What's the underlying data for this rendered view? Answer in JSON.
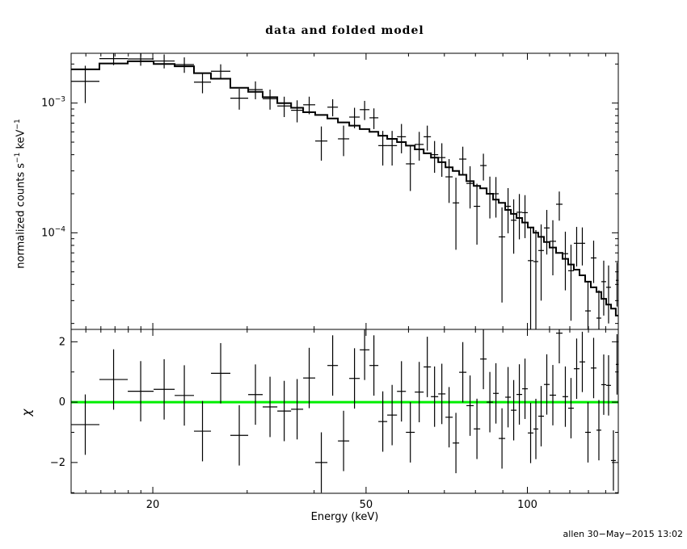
{
  "title": "data and folded model",
  "footer": {
    "stamp": "allen 30−May−2015 13:02"
  },
  "axes": {
    "x_label": "Energy (keV)",
    "x_ticks": [
      {
        "label": "20",
        "value": 20
      },
      {
        "label": "50",
        "value": 50
      },
      {
        "label": "100",
        "value": 100
      }
    ],
    "x_minor": [
      15,
      16,
      17,
      18,
      19,
      30,
      40,
      60,
      70,
      80,
      90,
      110,
      120,
      130,
      140
    ],
    "top_y_label": {
      "pre": "normalized counts s",
      "sup1": "−1",
      "mid": " keV",
      "sup2": "−1"
    },
    "top_y_ticks": [
      {
        "base": "10",
        "exp": "−3",
        "value": 0.001
      },
      {
        "base": "10",
        "exp": "−4",
        "value": 0.0001
      }
    ],
    "bottom_y_label": "χ",
    "bottom_y_ticks": [
      {
        "label": "2",
        "value": 2
      },
      {
        "label": "0",
        "value": 0
      },
      {
        "label": "−2",
        "value": -2
      }
    ],
    "bottom_y_minor": [
      1,
      -1,
      -3
    ]
  },
  "chart_data": {
    "type": "line",
    "title": "data and folded model",
    "xlabel": "Energy (keV)",
    "ylabel": "normalized counts s^-1 keV^-1",
    "ylabel_residual": "chi",
    "x_scale": "log",
    "y_scale": "log",
    "xlim": [
      14.08,
      147.8
    ],
    "ylim_top": [
      1.8e-05,
      0.00242
    ],
    "ylim_residual": [
      -3.02,
      2.41
    ],
    "grid": false,
    "legend": "none",
    "residual_zero_line_color": "#00ee00",
    "residual_err": 1,
    "series": [
      {
        "name": "data",
        "style": "crosses-with-errors",
        "color": "#000000"
      },
      {
        "name": "folded model",
        "style": "step-histogram",
        "color": "#000000"
      }
    ],
    "bin_fields": [
      "e_lo_keV",
      "e_hi_keV",
      "rate",
      "rate_err",
      "model"
    ],
    "bins": [
      [
        14.08,
        15.9,
        0.00147,
        0.00047,
        0.00182
      ],
      [
        15.9,
        17.96,
        0.0022,
        0.00024,
        0.00202
      ],
      [
        17.96,
        20.07,
        0.00219,
        0.00025,
        0.0021
      ],
      [
        20.07,
        21.97,
        0.00211,
        0.00026,
        0.002
      ],
      [
        21.97,
        23.87,
        0.00198,
        0.00027,
        0.00192
      ],
      [
        23.87,
        25.68,
        0.00145,
        0.00026,
        0.0017
      ],
      [
        25.68,
        27.91,
        0.00176,
        0.00023,
        0.00154
      ],
      [
        27.91,
        30.13,
        0.00109,
        0.0002,
        0.00131
      ],
      [
        30.13,
        32.07,
        0.00127,
        0.0002,
        0.00122
      ],
      [
        32.07,
        34.15,
        0.00108,
        0.00019,
        0.00111
      ],
      [
        34.15,
        36.23,
        0.00095,
        0.00017,
        0.001
      ],
      [
        36.23,
        38.16,
        0.00088,
        0.00017,
        0.00092
      ],
      [
        38.16,
        40.19,
        0.00097,
        0.00015,
        0.00085
      ],
      [
        40.19,
        42.35,
        0.00051,
        0.00015,
        0.00081
      ],
      [
        42.35,
        44.31,
        0.00093,
        0.00014,
        0.00076
      ],
      [
        44.31,
        46.51,
        0.00053,
        0.00014,
        0.00071
      ],
      [
        46.51,
        48.67,
        0.00078,
        0.00014,
        0.00067
      ],
      [
        48.67,
        50.74,
        0.00089,
        0.00015,
        0.00063
      ],
      [
        50.74,
        52.71,
        0.00077,
        0.00014,
        0.0006
      ],
      [
        52.71,
        54.76,
        0.00047,
        0.00014,
        0.00056
      ],
      [
        54.76,
        57.11,
        0.00047,
        0.00014,
        0.00053
      ],
      [
        57.11,
        59.34,
        0.00055,
        0.00014,
        0.0005
      ],
      [
        59.34,
        61.64,
        0.00034,
        0.00013,
        0.00047
      ],
      [
        61.64,
        64.04,
        0.00048,
        0.00012,
        0.00044
      ],
      [
        64.04,
        66.07,
        0.00055,
        0.00012,
        0.00041
      ],
      [
        66.07,
        68.17,
        0.0004,
        0.00011,
        0.00038
      ],
      [
        68.17,
        70.33,
        0.00038,
        0.00011,
        0.00035
      ],
      [
        70.33,
        72.55,
        0.00027,
        0.0001,
        0.00032
      ],
      [
        72.55,
        74.59,
        0.00017,
        9.6e-05,
        0.0003
      ],
      [
        74.59,
        76.96,
        0.00037,
        9.1e-05,
        0.00028
      ],
      [
        76.96,
        79.4,
        0.00024,
        8.6e-05,
        0.00025
      ],
      [
        79.4,
        81.65,
        0.00016,
        7.9e-05,
        0.00023
      ],
      [
        81.65,
        83.94,
        0.00033,
        7.7e-05,
        0.00022
      ],
      [
        83.94,
        86.3,
        0.0002,
        7.1e-05,
        0.0002
      ],
      [
        86.3,
        88.43,
        0.0002,
        6.9e-05,
        0.00018
      ],
      [
        88.43,
        90.92,
        9.3e-05,
        6.4e-05,
        0.00017
      ],
      [
        90.92,
        93.16,
        0.00016,
        6.1e-05,
        0.00015
      ],
      [
        93.16,
        95.44,
        0.000125,
        5.6e-05,
        0.00014
      ],
      [
        95.44,
        97.79,
        0.000144,
        5.5e-05,
        0.00013
      ],
      [
        97.79,
        100.19,
        0.000143,
        5.2e-05,
        0.00012
      ],
      [
        100.19,
        102.64,
        6.1e-05,
        4.8e-05,
        0.00011
      ],
      [
        102.64,
        104.81,
        6e-05,
        4.5e-05,
        0.0001
      ],
      [
        104.81,
        107.39,
        7.3e-05,
        4.3e-05,
        9.3e-05
      ],
      [
        107.39,
        110.03,
        0.000109,
        4.1e-05,
        8.5e-05
      ],
      [
        110.03,
        113.12,
        8.6e-05,
        3.9e-05,
        7.7e-05
      ],
      [
        113.12,
        116.3,
        0.000166,
        4.2e-05,
        7e-05
      ],
      [
        116.3,
        119.16,
        6.9e-05,
        3.3e-05,
        6.3e-05
      ],
      [
        119.16,
        122.09,
        5.1e-05,
        3e-05,
        5.7e-05
      ],
      [
        122.09,
        125.1,
        8.3e-05,
        2.8e-05,
        5.2e-05
      ],
      [
        125.1,
        128.18,
        8.3e-05,
        2.7e-05,
        4.7e-05
      ],
      [
        128.18,
        131.34,
        2.5e-05,
        1.7e-05,
        4.2e-05
      ],
      [
        131.34,
        134.56,
        6.4e-05,
        2.3e-05,
        3.8e-05
      ],
      [
        134.56,
        137.39,
        2.2e-05,
        1.4e-05,
        3.5e-05
      ],
      [
        137.39,
        140.28,
        4.2e-05,
        1.9e-05,
        3.1e-05
      ],
      [
        140.28,
        143.23,
        3.8e-05,
        1.8e-05,
        2.8e-05
      ],
      [
        143.23,
        146.24,
        8.6e-06,
        9e-06,
        2.6e-05
      ],
      [
        146.24,
        147.77,
        4.3e-05,
        1.6e-05,
        2.3e-05
      ]
    ]
  }
}
